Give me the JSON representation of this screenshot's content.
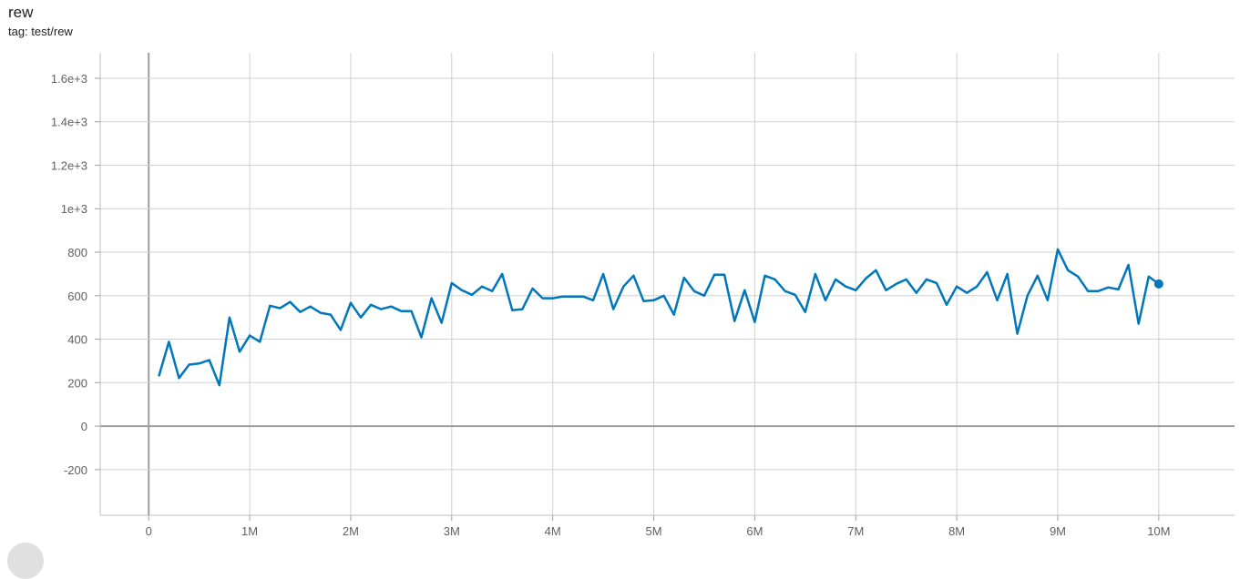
{
  "header": {
    "title": "rew",
    "tag": "tag: test/rew"
  },
  "chart_data": {
    "type": "line",
    "title": "rew",
    "subtitle": "tag: test/rew",
    "xlim": [
      -0.48,
      10.75
    ],
    "ylim": [
      -410,
      1717
    ],
    "grid": true,
    "x_ticks": [
      0,
      1,
      2,
      3,
      4,
      5,
      6,
      7,
      8,
      9,
      10
    ],
    "x_tick_labels": [
      "0",
      "1M",
      "2M",
      "3M",
      "4M",
      "5M",
      "6M",
      "7M",
      "8M",
      "9M",
      "10M"
    ],
    "y_ticks": [
      -200,
      0,
      200,
      400,
      600,
      800,
      1000,
      1200,
      1400,
      1600
    ],
    "y_tick_labels": [
      "-200",
      "0",
      "200",
      "400",
      "600",
      "800",
      "1e+3",
      "1.2e+3",
      "1.4e+3",
      "1.6e+3"
    ],
    "color": "#0077bb",
    "series": [
      {
        "x_unit": "M steps",
        "x": [
          0.1,
          0.2,
          0.3,
          0.4,
          0.5,
          0.6,
          0.7,
          0.8,
          0.9,
          1.0,
          1.1,
          1.2,
          1.3,
          1.4,
          1.5,
          1.6,
          1.7,
          1.8,
          1.9,
          2.0,
          2.1,
          2.2,
          2.3,
          2.4,
          2.5,
          2.6,
          2.7,
          2.8,
          2.9,
          3.0,
          3.1,
          3.2,
          3.3,
          3.4,
          3.5,
          3.6,
          3.7,
          3.8,
          3.9,
          4.0,
          4.1,
          4.2,
          4.3,
          4.4,
          4.5,
          4.6,
          4.7,
          4.8,
          4.9,
          5.0,
          5.1,
          5.2,
          5.3,
          5.4,
          5.5,
          5.6,
          5.7,
          5.8,
          5.9,
          6.0,
          6.1,
          6.2,
          6.3,
          6.4,
          6.5,
          6.6,
          6.7,
          6.8,
          6.9,
          7.0,
          7.1,
          7.2,
          7.3,
          7.4,
          7.5,
          7.6,
          7.7,
          7.8,
          7.9,
          8.0,
          8.1,
          8.2,
          8.3,
          8.4,
          8.5,
          8.6,
          8.7,
          8.8,
          8.9,
          9.0,
          9.1,
          9.2,
          9.3,
          9.4,
          9.5,
          9.6,
          9.7,
          9.8,
          9.9,
          10.0
        ],
        "y": [
          229,
          388,
          221,
          283,
          288,
          304,
          188,
          500,
          342,
          417,
          388,
          554,
          542,
          571,
          525,
          550,
          521,
          513,
          442,
          567,
          500,
          558,
          538,
          550,
          529,
          529,
          408,
          588,
          475,
          658,
          625,
          604,
          642,
          621,
          700,
          533,
          538,
          633,
          588,
          588,
          596,
          596,
          596,
          579,
          700,
          538,
          642,
          692,
          575,
          579,
          600,
          513,
          683,
          621,
          600,
          696,
          696,
          483,
          625,
          479,
          692,
          675,
          621,
          604,
          525,
          700,
          579,
          675,
          642,
          625,
          679,
          717,
          625,
          654,
          675,
          613,
          675,
          658,
          558,
          642,
          613,
          642,
          708,
          579,
          700,
          425,
          600,
          692,
          579,
          813,
          717,
          688,
          621,
          621,
          638,
          629,
          742,
          471,
          688,
          654
        ]
      }
    ]
  }
}
